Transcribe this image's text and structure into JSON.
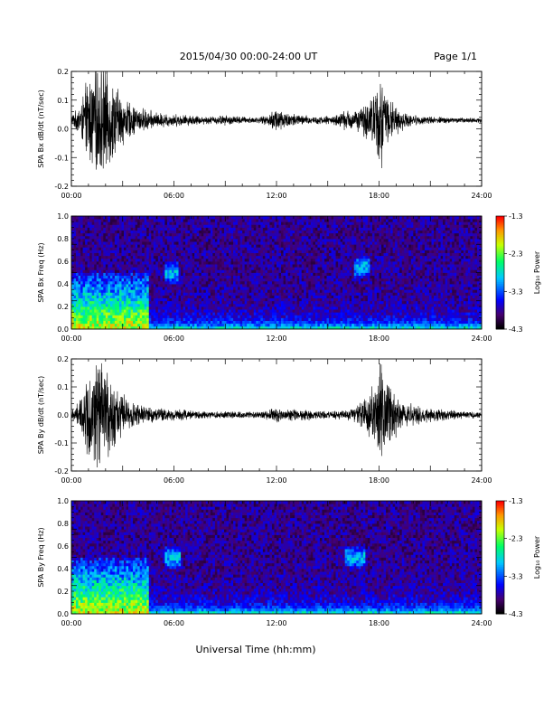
{
  "header": {
    "title": "2015/04/30  00:00-24:00 UT",
    "page": "Page 1/1"
  },
  "xlabel": "Universal Time (hh:mm)",
  "chart_data": [
    {
      "type": "line",
      "ylabel": "SPA Bx dB/dt (nT/sec)",
      "xlim": [
        0,
        24
      ],
      "ylim": [
        -0.2,
        0.2
      ],
      "xticks": [
        "00:00",
        "06:00",
        "12:00",
        "18:00",
        "24:00"
      ],
      "yticks": [
        "-0.2",
        "-0.1",
        "0.0",
        "0.1",
        "0.2"
      ],
      "baseline": 0.03,
      "envelope": {
        "hours": [
          0.0,
          0.3,
          0.6,
          0.9,
          1.2,
          1.5,
          1.8,
          2.1,
          2.4,
          2.8,
          3.2,
          3.6,
          4.0,
          5.0,
          6.0,
          7.0,
          8.0,
          9.0,
          10.0,
          11.0,
          11.5,
          11.8,
          12.0,
          12.3,
          12.8,
          13.5,
          14.5,
          15.5,
          16.0,
          16.5,
          17.0,
          17.3,
          17.6,
          17.9,
          18.1,
          18.3,
          18.6,
          19.0,
          19.5,
          20.0,
          21.0,
          22.0,
          23.0,
          24.0
        ],
        "amplitude": [
          0.02,
          0.04,
          0.08,
          0.15,
          0.2,
          0.22,
          0.22,
          0.2,
          0.16,
          0.12,
          0.08,
          0.06,
          0.05,
          0.03,
          0.025,
          0.02,
          0.015,
          0.02,
          0.015,
          0.012,
          0.02,
          0.04,
          0.06,
          0.04,
          0.03,
          0.02,
          0.015,
          0.02,
          0.04,
          0.04,
          0.05,
          0.08,
          0.1,
          0.14,
          0.2,
          0.14,
          0.08,
          0.06,
          0.03,
          0.02,
          0.015,
          0.012,
          0.01,
          0.01
        ]
      }
    },
    {
      "type": "heatmap",
      "ylabel": "SPA Bx Freq (Hz)",
      "xlim": [
        0,
        24
      ],
      "ylim": [
        0.0,
        1.0
      ],
      "xticks": [
        "00:00",
        "06:00",
        "12:00",
        "18:00",
        "24:00"
      ],
      "yticks": [
        "0.0",
        "0.2",
        "0.4",
        "0.6",
        "0.8",
        "1.0"
      ],
      "colorbar": {
        "label": "Log₁₀ Power",
        "min": -4.3,
        "max": -1.3,
        "ticks": [
          "-1.3",
          "-2.3",
          "-3.3",
          "-4.3"
        ]
      },
      "features": [
        {
          "t0": 0.0,
          "t1": 4.5,
          "f_max": 0.5,
          "peak_log_power": -2.0
        },
        {
          "t0": 5.5,
          "t1": 6.3,
          "f_center": 0.5,
          "peak_log_power": -3.0
        },
        {
          "t0": 16.5,
          "t1": 17.5,
          "f_center": 0.55,
          "peak_log_power": -3.0
        }
      ]
    },
    {
      "type": "line",
      "ylabel": "SPA By dB/dt (nT/sec)",
      "xlim": [
        0,
        24
      ],
      "ylim": [
        -0.2,
        0.2
      ],
      "xticks": [
        "00:00",
        "06:00",
        "12:00",
        "18:00",
        "24:00"
      ],
      "yticks": [
        "-0.2",
        "-0.1",
        "0.0",
        "0.1",
        "0.2"
      ],
      "baseline": 0.0,
      "envelope": {
        "hours": [
          0.0,
          0.3,
          0.6,
          0.9,
          1.2,
          1.5,
          1.8,
          2.1,
          2.4,
          2.8,
          3.2,
          3.6,
          4.0,
          5.0,
          6.0,
          7.0,
          8.0,
          9.0,
          10.0,
          11.0,
          11.5,
          12.0,
          12.5,
          13.0,
          14.0,
          15.0,
          16.0,
          16.5,
          17.0,
          17.4,
          17.8,
          18.1,
          18.4,
          18.8,
          19.2,
          19.6,
          20.0,
          21.0,
          22.0,
          23.0,
          24.0
        ],
        "amplitude": [
          0.02,
          0.04,
          0.08,
          0.15,
          0.2,
          0.22,
          0.2,
          0.18,
          0.14,
          0.1,
          0.07,
          0.05,
          0.04,
          0.03,
          0.025,
          0.02,
          0.015,
          0.015,
          0.012,
          0.012,
          0.02,
          0.03,
          0.02,
          0.025,
          0.02,
          0.015,
          0.02,
          0.03,
          0.06,
          0.1,
          0.14,
          0.2,
          0.14,
          0.1,
          0.07,
          0.05,
          0.04,
          0.03,
          0.02,
          0.015,
          0.012
        ]
      }
    },
    {
      "type": "heatmap",
      "ylabel": "SPA By Freq (Hz)",
      "xlim": [
        0,
        24
      ],
      "ylim": [
        0.0,
        1.0
      ],
      "xticks": [
        "00:00",
        "06:00",
        "12:00",
        "18:00",
        "24:00"
      ],
      "yticks": [
        "0.0",
        "0.2",
        "0.4",
        "0.6",
        "0.8",
        "1.0"
      ],
      "colorbar": {
        "label": "Log₁₀ Power",
        "min": -4.3,
        "max": -1.3,
        "ticks": [
          "-1.3",
          "-2.3",
          "-3.3",
          "-4.3"
        ]
      },
      "features": [
        {
          "t0": 0.0,
          "t1": 4.5,
          "f_max": 0.5,
          "peak_log_power": -2.0
        },
        {
          "t0": 5.5,
          "t1": 6.4,
          "f_center": 0.5,
          "peak_log_power": -3.0
        },
        {
          "t0": 16.0,
          "t1": 17.2,
          "f_center": 0.5,
          "peak_log_power": -3.0
        }
      ]
    }
  ]
}
